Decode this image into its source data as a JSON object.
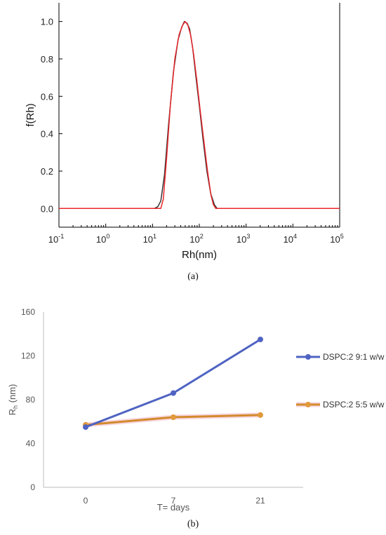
{
  "chart_data": [
    {
      "type": "line",
      "panel_label": "(a)",
      "xlabel": "Rh(nm)",
      "ylabel": "f(Rh)",
      "x_scale": "log",
      "xlim": [
        0.1,
        100000
      ],
      "ylim": [
        -0.1,
        1.1
      ],
      "x_ticks": [
        0.1,
        1,
        10,
        100,
        1000,
        10000,
        100000
      ],
      "x_tick_base": "10",
      "x_tick_exponents": [
        "-1",
        "0",
        "1",
        "2",
        "3",
        "4",
        "5"
      ],
      "y_ticks": [
        "0.0",
        "0.2",
        "0.4",
        "0.6",
        "0.8",
        "1.0"
      ],
      "series": [
        {
          "color": "#333333",
          "points": [
            [
              0.1,
              0
            ],
            [
              11,
              0
            ],
            [
              13,
              0.01
            ],
            [
              15,
              0.04
            ],
            [
              18,
              0.18
            ],
            [
              22,
              0.45
            ],
            [
              28,
              0.73
            ],
            [
              35,
              0.9
            ],
            [
              42,
              0.97
            ],
            [
              48,
              1.0
            ],
            [
              55,
              0.99
            ],
            [
              62,
              0.96
            ],
            [
              72,
              0.86
            ],
            [
              85,
              0.7
            ],
            [
              100,
              0.55
            ],
            [
              120,
              0.37
            ],
            [
              145,
              0.2
            ],
            [
              175,
              0.08
            ],
            [
              210,
              0.02
            ],
            [
              240,
              0
            ],
            [
              100000,
              0
            ]
          ]
        },
        {
          "color": "#e8262b",
          "points": [
            [
              0.1,
              0
            ],
            [
              15,
              0
            ],
            [
              17,
              0.05
            ],
            [
              20,
              0.27
            ],
            [
              24,
              0.55
            ],
            [
              30,
              0.8
            ],
            [
              37,
              0.93
            ],
            [
              44,
              0.98
            ],
            [
              50,
              1.0
            ],
            [
              57,
              0.98
            ],
            [
              65,
              0.93
            ],
            [
              75,
              0.83
            ],
            [
              88,
              0.69
            ],
            [
              105,
              0.52
            ],
            [
              125,
              0.36
            ],
            [
              150,
              0.2
            ],
            [
              178,
              0.07
            ],
            [
              200,
              0.02
            ],
            [
              225,
              0
            ],
            [
              100000,
              0
            ]
          ]
        }
      ]
    },
    {
      "type": "line",
      "panel_label": "(b)",
      "xlabel": "T= days",
      "ylabel_main": "R",
      "ylabel_sub": "h",
      "ylabel_tail": " (nm)",
      "categories": [
        "0",
        "7",
        "21"
      ],
      "ylim": [
        0,
        160
      ],
      "y_ticks": [
        0,
        40,
        80,
        120,
        160
      ],
      "legend_position": "right",
      "series": [
        {
          "name": "DSPC:2 9:1 w/w",
          "color": "#4f63c2",
          "values": [
            55,
            86,
            135
          ]
        },
        {
          "name": "DSPC:2 5:5 w/w",
          "color": "#d38a2c",
          "marker_color": "#e09a3a",
          "glow": "#f3c6d3",
          "values": [
            57,
            64,
            66
          ]
        }
      ]
    }
  ]
}
